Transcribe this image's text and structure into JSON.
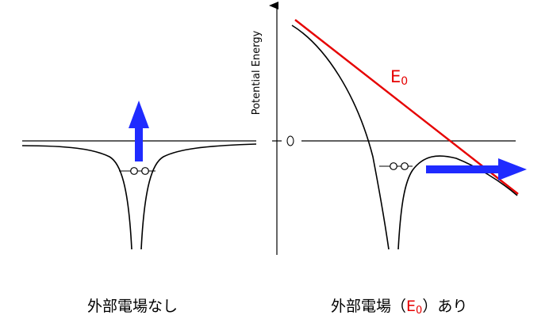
{
  "left_panel": {
    "caption": "外部電場なし"
  },
  "right_panel": {
    "y_axis_label": "Potential Energy",
    "zero_label": "0",
    "field_label_main": "E",
    "field_label_sub": "0",
    "caption_before": "外部電場（",
    "caption_field_main": "E",
    "caption_field_sub": "0",
    "caption_after": "）あり"
  },
  "colors": {
    "curve": "#000000",
    "field_line": "#e60000",
    "arrow": "#1f2bff"
  }
}
